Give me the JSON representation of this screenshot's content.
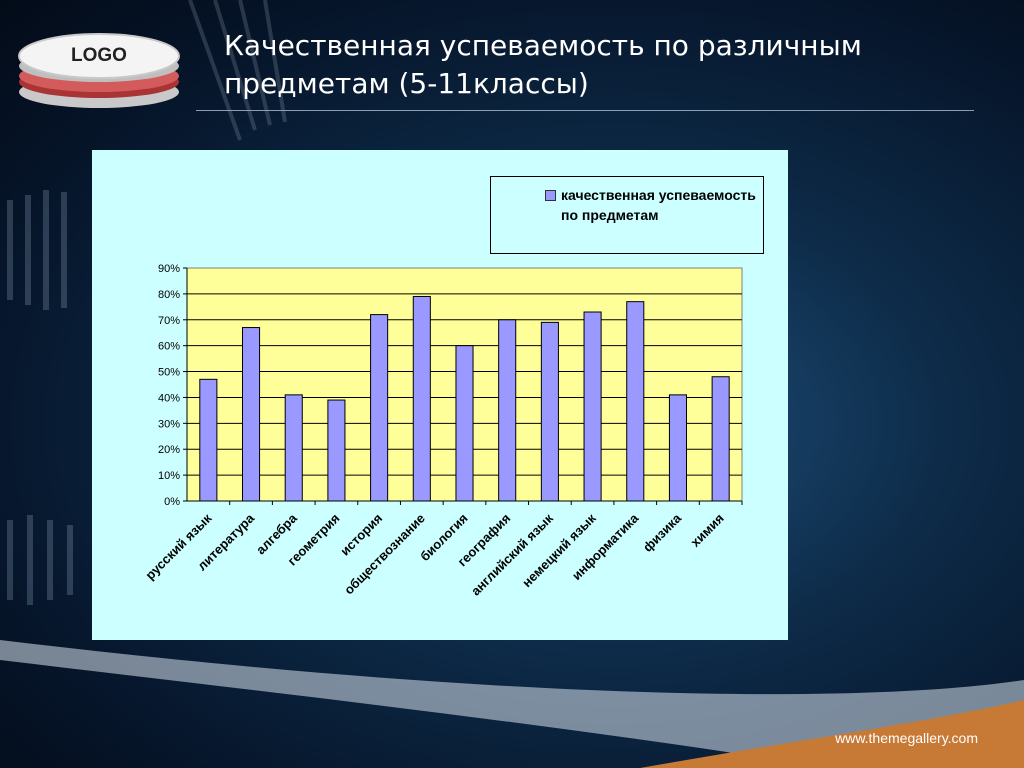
{
  "logo": {
    "text": "LOGO"
  },
  "slide": {
    "title": "Качественная успеваемость по различным предметам (5-11классы)",
    "footer": "www.themegallery.com"
  },
  "colors": {
    "plot_background": "#ffff99",
    "bar_fill": "#9999ff",
    "chart_panel": "#ccffff",
    "footer_band": "#c77a35"
  },
  "chart_data": {
    "type": "bar",
    "title": "",
    "xlabel": "",
    "ylabel": "",
    "categories": [
      "русский язык",
      "литература",
      "алгебра",
      "геометрия",
      "история",
      "обществознание",
      "биология",
      "география",
      "английский язык",
      "немецкий язык",
      "информатика",
      "физика",
      "химия"
    ],
    "series": [
      {
        "name": "качественная успеваемость по предметам",
        "values": [
          47,
          67,
          41,
          39,
          72,
          79,
          60,
          70,
          69,
          73,
          77,
          41,
          48
        ]
      }
    ],
    "ylim": [
      0,
      90
    ],
    "y_ticks": [
      "0%",
      "10%",
      "20%",
      "30%",
      "40%",
      "50%",
      "60%",
      "70%",
      "80%",
      "90%"
    ],
    "grid": true,
    "legend_position": "top-right"
  }
}
